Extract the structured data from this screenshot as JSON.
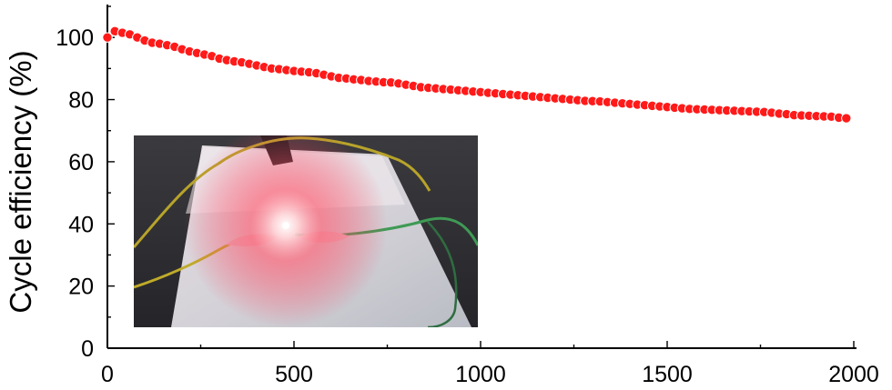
{
  "chart_data": {
    "type": "scatter",
    "title": "",
    "xlabel": "",
    "ylabel": "Cycle efficiency (%)",
    "xlim": [
      0,
      2000
    ],
    "ylim": [
      0,
      110
    ],
    "xticks": [
      "0",
      "500",
      "1000",
      "1500",
      "2000"
    ],
    "yticks": [
      "0",
      "20",
      "40",
      "60",
      "80",
      "100"
    ],
    "grid": false,
    "legend": "none",
    "marker_color": "#ff1a1a",
    "marker_style": "circle with connecting line",
    "series": [
      {
        "points": [
          [
            0,
            100
          ],
          [
            20,
            102
          ],
          [
            40,
            101.5
          ],
          [
            60,
            101
          ],
          [
            80,
            100
          ],
          [
            100,
            99
          ],
          [
            120,
            98.3
          ],
          [
            140,
            98
          ],
          [
            160,
            97.5
          ],
          [
            180,
            97
          ],
          [
            200,
            96.2
          ],
          [
            220,
            95.5
          ],
          [
            240,
            95
          ],
          [
            260,
            94.5
          ],
          [
            280,
            94
          ],
          [
            300,
            93.2
          ],
          [
            320,
            92.7
          ],
          [
            340,
            92.3
          ],
          [
            360,
            92
          ],
          [
            380,
            91.5
          ],
          [
            400,
            91
          ],
          [
            420,
            90.5
          ],
          [
            440,
            90
          ],
          [
            460,
            89.8
          ],
          [
            480,
            89.5
          ],
          [
            500,
            89.2
          ],
          [
            520,
            89
          ],
          [
            540,
            88.8
          ],
          [
            560,
            88.5
          ],
          [
            580,
            88
          ],
          [
            600,
            87.5
          ],
          [
            620,
            87
          ],
          [
            640,
            86.8
          ],
          [
            660,
            86.5
          ],
          [
            680,
            86.3
          ],
          [
            700,
            86
          ],
          [
            720,
            85.8
          ],
          [
            740,
            85.6
          ],
          [
            760,
            85.5
          ],
          [
            780,
            85.2
          ],
          [
            800,
            84.8
          ],
          [
            820,
            84.4
          ],
          [
            840,
            84
          ],
          [
            860,
            83.8
          ],
          [
            880,
            83.6
          ],
          [
            900,
            83.4
          ],
          [
            920,
            83.2
          ],
          [
            940,
            83
          ],
          [
            960,
            82.8
          ],
          [
            980,
            82.6
          ],
          [
            1000,
            82.4
          ],
          [
            1020,
            82.2
          ],
          [
            1040,
            82
          ],
          [
            1060,
            81.8
          ],
          [
            1080,
            81.6
          ],
          [
            1100,
            81.4
          ],
          [
            1120,
            81.2
          ],
          [
            1140,
            81
          ],
          [
            1160,
            80.8
          ],
          [
            1180,
            80.6
          ],
          [
            1200,
            80.4
          ],
          [
            1220,
            80.2
          ],
          [
            1240,
            80
          ],
          [
            1260,
            79.8
          ],
          [
            1280,
            79.6
          ],
          [
            1300,
            79.5
          ],
          [
            1320,
            79.4
          ],
          [
            1340,
            79.2
          ],
          [
            1360,
            79
          ],
          [
            1380,
            78.8
          ],
          [
            1400,
            78.6
          ],
          [
            1420,
            78.4
          ],
          [
            1440,
            78.2
          ],
          [
            1460,
            78
          ],
          [
            1480,
            77.8
          ],
          [
            1500,
            77.6
          ],
          [
            1520,
            77.4
          ],
          [
            1540,
            77.2
          ],
          [
            1560,
            77
          ],
          [
            1580,
            76.9
          ],
          [
            1600,
            76.8
          ],
          [
            1620,
            76.7
          ],
          [
            1640,
            76.6
          ],
          [
            1660,
            76.5
          ],
          [
            1680,
            76.4
          ],
          [
            1700,
            76.3
          ],
          [
            1720,
            76.2
          ],
          [
            1740,
            76.1
          ],
          [
            1760,
            76
          ],
          [
            1780,
            75.8
          ],
          [
            1800,
            75.5
          ],
          [
            1820,
            75.3
          ],
          [
            1840,
            75
          ],
          [
            1860,
            74.9
          ],
          [
            1880,
            74.8
          ],
          [
            1900,
            74.7
          ],
          [
            1920,
            74.6
          ],
          [
            1940,
            74.5
          ],
          [
            1960,
            74.2
          ],
          [
            1980,
            74
          ]
        ]
      }
    ]
  },
  "inset": {
    "kind": "photograph",
    "subject": "glowing red LED powered by clip leads on foam block"
  }
}
